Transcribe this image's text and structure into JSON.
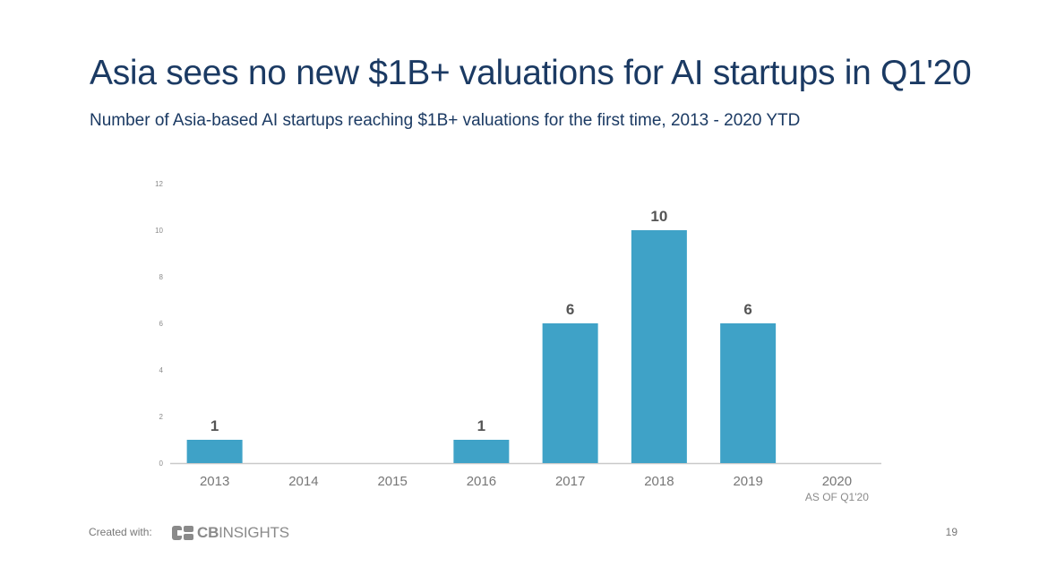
{
  "page": {
    "title": "Asia sees no new $1B+ valuations for AI startups in Q1'20",
    "subtitle": "Number of Asia-based AI startups reaching $1B+ valuations for the first time, 2013 - 2020 YTD",
    "created_with": "Created with:",
    "logo_bold": "CB",
    "logo_rest": "INSIGHTS",
    "page_number": "19"
  },
  "chart_data": {
    "type": "bar",
    "categories": [
      "2013",
      "2014",
      "2015",
      "2016",
      "2017",
      "2018",
      "2019",
      "2020"
    ],
    "category_sublabels": [
      "",
      "",
      "",
      "",
      "",
      "",
      "",
      "AS OF Q1'20"
    ],
    "values": [
      1,
      0,
      0,
      1,
      6,
      10,
      6,
      0
    ],
    "data_labels": [
      "1",
      "",
      "",
      "1",
      "6",
      "10",
      "6",
      ""
    ],
    "ylim": [
      0,
      12
    ],
    "yticks": [
      0,
      2,
      4,
      6,
      8,
      10,
      12
    ],
    "xlabel": "",
    "ylabel": "",
    "grid": false,
    "colors": {
      "bar": "#3fa2c7",
      "axis": "#c9c9c9",
      "tick_text": "#777777",
      "label_text": "#555555"
    }
  }
}
